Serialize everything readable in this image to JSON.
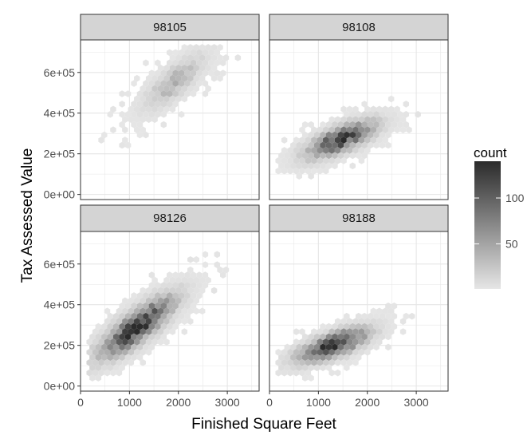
{
  "chart_data": {
    "type": "hexbin",
    "facet_by": "zip code",
    "panels": [
      {
        "label": "98105",
        "center": [
          1900,
          550000
        ],
        "spread": [
          650,
          90000
        ],
        "slope": 170,
        "peak": 38,
        "density_falloff": 1.3
      },
      {
        "label": "98108",
        "center": [
          1450,
          270000
        ],
        "spread": [
          650,
          60000
        ],
        "slope": 90,
        "peak": 120,
        "density_falloff": 1.0
      },
      {
        "label": "98126",
        "center": [
          1150,
          290000
        ],
        "spread": [
          700,
          80000
        ],
        "slope": 160,
        "peak": 135,
        "density_falloff": 1.0
      },
      {
        "label": "98188",
        "center": [
          1300,
          200000
        ],
        "spread": [
          650,
          55000
        ],
        "slope": 80,
        "peak": 140,
        "density_falloff": 1.0
      }
    ],
    "xlabel": "Finished Square Feet",
    "ylabel": "Tax Assessed Value",
    "xlim": [
      0,
      3650
    ],
    "ylim": [
      -25000,
      760000
    ],
    "x_ticks": [
      0,
      1000,
      2000,
      3000
    ],
    "x_tick_labels": [
      "0",
      "1000",
      "2000",
      "3000"
    ],
    "y_ticks": [
      0,
      200000,
      400000,
      600000
    ],
    "y_tick_labels": [
      "0e+00",
      "2e+05",
      "4e+05",
      "6e+05"
    ],
    "legend": {
      "title": "count",
      "placement": "right",
      "min": 1,
      "max": 140,
      "breaks": [
        50,
        100
      ],
      "break_labels": [
        "50",
        "100"
      ],
      "color_low": "#e6e6e6",
      "color_high": "#2b2b2b"
    },
    "grid": true
  }
}
